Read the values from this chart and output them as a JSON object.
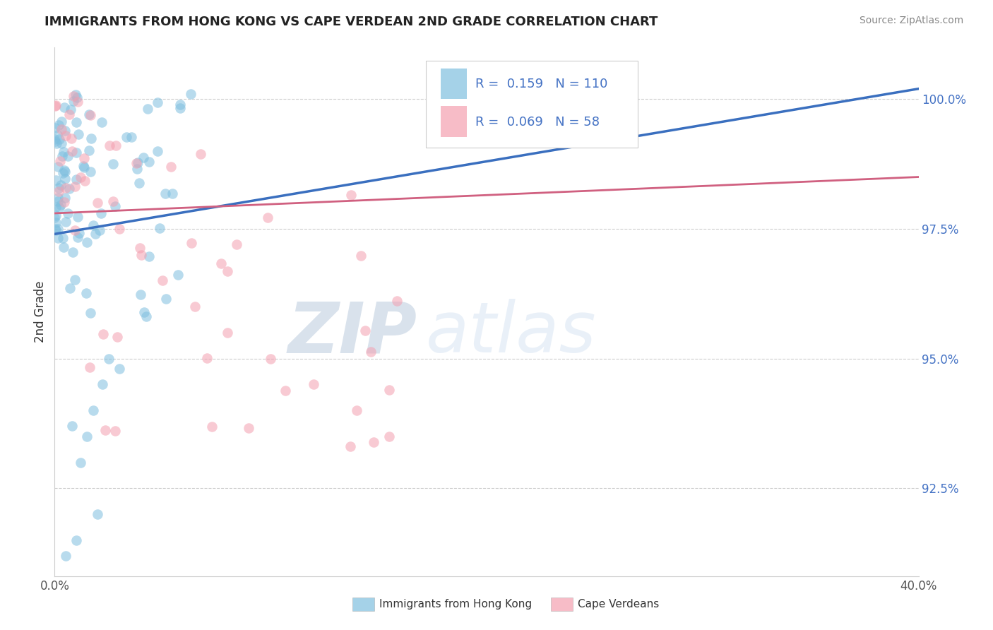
{
  "title": "IMMIGRANTS FROM HONG KONG VS CAPE VERDEAN 2ND GRADE CORRELATION CHART",
  "source": "Source: ZipAtlas.com",
  "ylabel": "2nd Grade",
  "yaxis_labels": [
    "100.0%",
    "97.5%",
    "95.0%",
    "92.5%"
  ],
  "yaxis_values": [
    1.0,
    0.975,
    0.95,
    0.925
  ],
  "xlim": [
    0.0,
    0.4
  ],
  "ylim": [
    0.908,
    1.01
  ],
  "blue_R": 0.159,
  "blue_N": 110,
  "pink_R": 0.069,
  "pink_N": 58,
  "blue_color": "#7fbfdf",
  "pink_color": "#f4a0b0",
  "blue_line_color": "#3a6fbf",
  "pink_line_color": "#d06080",
  "legend_label_blue": "Immigrants from Hong Kong",
  "legend_label_pink": "Cape Verdeans",
  "watermark_zip": "ZIP",
  "watermark_atlas": "atlas",
  "background_color": "#ffffff",
  "grid_color": "#cccccc",
  "blue_line_x0": 0.0,
  "blue_line_y0": 0.974,
  "blue_line_x1": 0.4,
  "blue_line_y1": 1.002,
  "pink_line_x0": 0.0,
  "pink_line_y0": 0.978,
  "pink_line_x1": 0.4,
  "pink_line_y1": 0.985
}
